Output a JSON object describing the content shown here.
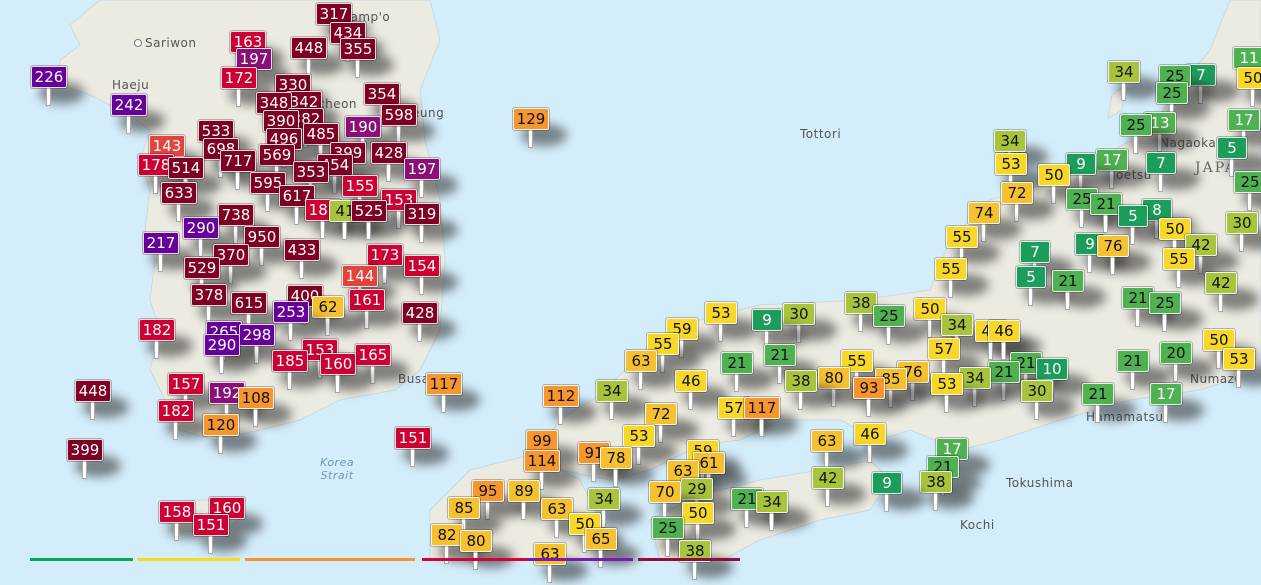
{
  "map": {
    "places": [
      {
        "name": "Namp'o",
        "dot": true
      },
      {
        "name": "Sariwon",
        "dot": true
      },
      {
        "name": "Haeju",
        "dot": false
      },
      {
        "name": "cheon",
        "dot": false
      },
      {
        "name": "eung",
        "dot": false
      },
      {
        "name": "Busan",
        "dot": false
      },
      {
        "name": "Korea\nStrait",
        "dot": false
      },
      {
        "name": "Nagaoka",
        "dot": false
      },
      {
        "name": "Joetsu",
        "dot": false
      },
      {
        "name": "JAPA",
        "dot": false
      },
      {
        "name": "Tottori",
        "dot": false
      },
      {
        "name": "Tokushima",
        "dot": false
      },
      {
        "name": "Kochi",
        "dot": false
      },
      {
        "name": "Hamamatsu",
        "dot": false
      },
      {
        "name": "Numazu",
        "dot": false
      }
    ],
    "colors": {
      "sea": "#d4edfa",
      "land": "#ecebe2",
      "good_dark": "#1c9d5c",
      "good": "#4fb152",
      "good_light": "#a7c43c",
      "moderate": "#f7d727",
      "moderate_high": "#f5c130",
      "usg": "#f5962e",
      "unhealthy_low": "#e0443c",
      "unhealthy": "#cc0033",
      "very_unhealthy": "#8a1078",
      "very_unhealthy_purple": "#660099",
      "hazardous": "#7e0023"
    },
    "stations": [
      226,
      242,
      163,
      197,
      317,
      434,
      448,
      355,
      172,
      330,
      348,
      342,
      354,
      598,
      190,
      390,
      382,
      496,
      485,
      533,
      143,
      698,
      178,
      717,
      569,
      399,
      428,
      514,
      353,
      454,
      197,
      633,
      595,
      155,
      617,
      153,
      738,
      181,
      41,
      525,
      319,
      290,
      950,
      433,
      217,
      173,
      154,
      370,
      529,
      144,
      378,
      615,
      400,
      62,
      161,
      428,
      182,
      253,
      265,
      298,
      290,
      185,
      153,
      160,
      165,
      448,
      157,
      192,
      108,
      182,
      120,
      399,
      151,
      158,
      160,
      151,
      129,
      117,
      112,
      99,
      114,
      91,
      78,
      95,
      85,
      89,
      82,
      80,
      63,
      65,
      50,
      34,
      63,
      53,
      59,
      55,
      63,
      34,
      46,
      72,
      53,
      9,
      30,
      21,
      21,
      38,
      57,
      117,
      80,
      93,
      85,
      46,
      63,
      42,
      61,
      63,
      70,
      50,
      29,
      21,
      34,
      25,
      38,
      59,
      38,
      25,
      55,
      9,
      34,
      25,
      34,
      53,
      50,
      72,
      74,
      55,
      55,
      9,
      17,
      25,
      21,
      5,
      8,
      7,
      13,
      25,
      25,
      7,
      17,
      11,
      50,
      5,
      50,
      76,
      9,
      7,
      42,
      30,
      25,
      55,
      21,
      5,
      21,
      25,
      42,
      50,
      34,
      46,
      57,
      76,
      53,
      34,
      21,
      30,
      21,
      21,
      17,
      20,
      50,
      53,
      46,
      17,
      21,
      38,
      21,
      10
    ]
  },
  "legend": {
    "segments": [
      "#00a65a",
      "#f7dc1b",
      "#f7942f",
      "#d6003a",
      "#7a1cab",
      "#8f0c3c"
    ]
  }
}
